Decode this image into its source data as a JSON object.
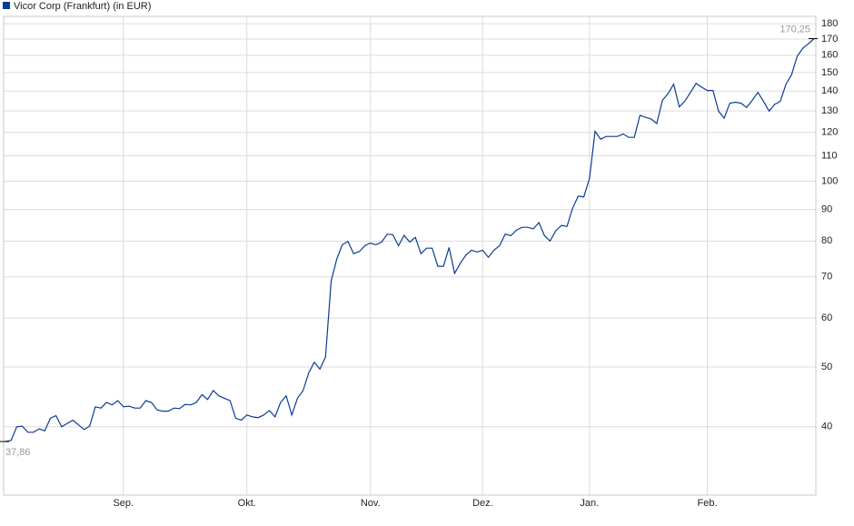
{
  "chart_data": {
    "type": "line",
    "log_scale": true,
    "grid": true,
    "ylim": [
      31,
      185
    ],
    "yticks": [
      40,
      50,
      60,
      70,
      80,
      90,
      100,
      110,
      120,
      130,
      140,
      150,
      160,
      170,
      180
    ],
    "categories": [
      null,
      null,
      null,
      null,
      null,
      null,
      null,
      null,
      null,
      null,
      null,
      null,
      null,
      null,
      null,
      null,
      null,
      null,
      null,
      null,
      null,
      "Sep.",
      null,
      null,
      null,
      null,
      null,
      null,
      null,
      null,
      null,
      null,
      null,
      null,
      null,
      null,
      null,
      null,
      null,
      null,
      null,
      null,
      null,
      "Okt.",
      null,
      null,
      null,
      null,
      null,
      null,
      null,
      null,
      null,
      null,
      null,
      null,
      null,
      null,
      null,
      null,
      null,
      null,
      null,
      null,
      null,
      "Nov.",
      null,
      null,
      null,
      null,
      null,
      null,
      null,
      null,
      null,
      null,
      null,
      null,
      null,
      null,
      null,
      null,
      null,
      null,
      null,
      "Dez.",
      null,
      null,
      null,
      null,
      null,
      null,
      null,
      null,
      null,
      null,
      null,
      null,
      null,
      null,
      null,
      null,
      null,
      null,
      "Jan.",
      null,
      null,
      null,
      null,
      null,
      null,
      null,
      null,
      null,
      null,
      null,
      null,
      null,
      null,
      null,
      null,
      null,
      null,
      null,
      null,
      "Feb.",
      null,
      null,
      null,
      null,
      null,
      null,
      null,
      null,
      null,
      null,
      null,
      null,
      null,
      null,
      null,
      null,
      null,
      null,
      null
    ],
    "series": [
      {
        "name": "Vicor Corp (Frankfurt) (in EUR)",
        "color": "#0b3d91",
        "values": [
          37.86,
          38,
          40,
          40.1,
          39.2,
          39.2,
          39.7,
          39.4,
          41.3,
          41.7,
          40,
          40.5,
          41,
          40.3,
          39.6,
          40.1,
          43.1,
          42.9,
          43.8,
          43.4,
          44.1,
          43.1,
          43.2,
          42.9,
          42.9,
          44.1,
          43.8,
          42.6,
          42.4,
          42.4,
          42.9,
          42.8,
          43.5,
          43.4,
          43.8,
          45.1,
          44.3,
          45.8,
          44.9,
          44.5,
          44.1,
          41.3,
          41,
          41.8,
          41.5,
          41.4,
          41.8,
          42.5,
          41.5,
          43.8,
          44.9,
          41.8,
          44.5,
          45.8,
          48.9,
          50.9,
          49.6,
          51.9,
          68.9,
          74.8,
          78.9,
          79.9,
          76.3,
          76.9,
          78.6,
          79.4,
          78.9,
          79.7,
          82.1,
          81.9,
          78.6,
          81.7,
          79.7,
          81.1,
          76.3,
          77.9,
          77.9,
          72.8,
          72.8,
          78.1,
          70.9,
          73.6,
          75.9,
          77.3,
          76.8,
          77.3,
          75.3,
          77.3,
          78.6,
          82.1,
          81.6,
          83.3,
          84.2,
          84.2,
          83.7,
          85.7,
          81.6,
          80,
          83.1,
          84.8,
          84.5,
          90.4,
          94.6,
          94.3,
          101,
          120.5,
          117,
          118.2,
          118.2,
          118.2,
          119.3,
          117.8,
          117.8,
          127.9,
          126.9,
          126.1,
          124,
          135.2,
          138.6,
          143.6,
          132,
          134.8,
          139.3,
          144,
          142,
          140.3,
          140.3,
          129.9,
          126.5,
          133.8,
          134.3,
          133.8,
          131.7,
          135.2,
          139.3,
          134.7,
          129.9,
          133.2,
          134.7,
          143.6,
          148.8,
          159.4,
          164.2,
          167,
          170.25
        ],
        "value_labels": [
          "37,86",
          null,
          null,
          null,
          null,
          null,
          null,
          null,
          null,
          null,
          null,
          null,
          null,
          null,
          null,
          null,
          null,
          null,
          null,
          null,
          null,
          null,
          null,
          null,
          null,
          null,
          null,
          null,
          null,
          null,
          null,
          null,
          null,
          null,
          null,
          null,
          null,
          null,
          null,
          null,
          null,
          null,
          null,
          null,
          null,
          null,
          null,
          null,
          null,
          null,
          null,
          null,
          null,
          null,
          null,
          null,
          null,
          null,
          null,
          null,
          null,
          null,
          null,
          null,
          null,
          null,
          null,
          null,
          null,
          null,
          null,
          null,
          null,
          null,
          null,
          null,
          null,
          null,
          null,
          null,
          null,
          null,
          null,
          null,
          null,
          null,
          null,
          null,
          null,
          null,
          null,
          null,
          null,
          null,
          null,
          null,
          null,
          null,
          null,
          null,
          null,
          null,
          null,
          null,
          null,
          null,
          null,
          null,
          null,
          null,
          null,
          null,
          null,
          null,
          null,
          null,
          null,
          null,
          null,
          null,
          null,
          null,
          null,
          null,
          null,
          null,
          null,
          null,
          null,
          null,
          null,
          null,
          null,
          null,
          null,
          null,
          null,
          null,
          null,
          null,
          null,
          null,
          null,
          null,
          "170,25"
        ]
      }
    ]
  }
}
